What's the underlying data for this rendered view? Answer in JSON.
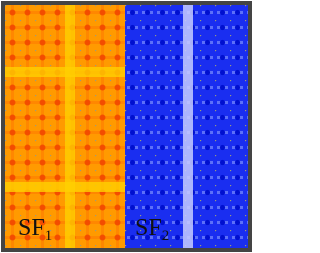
{
  "panels": [
    {
      "label": "SF",
      "subscript": "1"
    },
    {
      "label": "SF",
      "subscript": "2"
    }
  ]
}
